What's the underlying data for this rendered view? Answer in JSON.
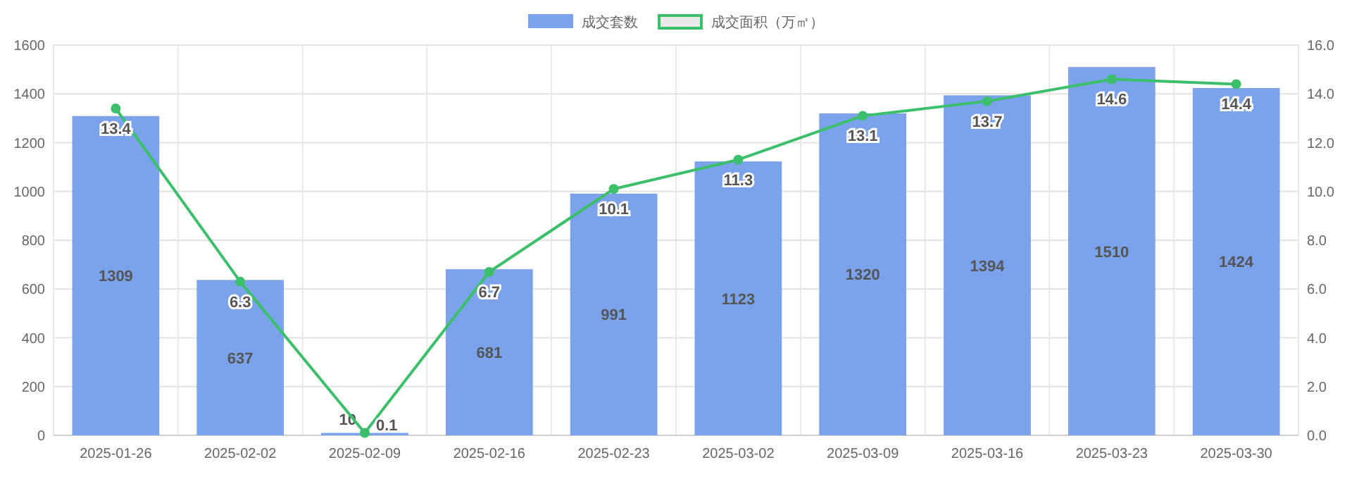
{
  "chart_data": {
    "type": "bar",
    "categories": [
      "2025-01-26",
      "2025-02-02",
      "2025-02-09",
      "2025-02-16",
      "2025-02-23",
      "2025-03-02",
      "2025-03-09",
      "2025-03-16",
      "2025-03-23",
      "2025-03-30"
    ],
    "series": [
      {
        "name": "成交套数",
        "color": "#7ba3ec",
        "values": [
          1309,
          637,
          10,
          681,
          991,
          1123,
          1320,
          1394,
          1510,
          1424
        ]
      },
      {
        "name": "成交面积（万㎡）",
        "type": "line",
        "axis": "y2",
        "color": "#3cbf6b",
        "values": [
          13.4,
          6.3,
          0.1,
          6.7,
          10.1,
          11.3,
          13.1,
          13.7,
          14.6,
          14.4
        ]
      }
    ],
    "ylim": [
      0,
      1600
    ],
    "yticks": [
      0,
      200,
      400,
      600,
      800,
      1000,
      1200,
      1400,
      1600
    ],
    "y2lim": [
      0,
      16
    ],
    "y2ticks": [
      {
        "value": 0,
        "label": "0.0"
      },
      {
        "value": 2,
        "label": "2.0"
      },
      {
        "value": 4,
        "label": "4.0"
      },
      {
        "value": 6,
        "label": "6.0"
      },
      {
        "value": 8,
        "label": "8.0"
      },
      {
        "value": 10,
        "label": "10.0"
      },
      {
        "value": 12,
        "label": "12.0"
      },
      {
        "value": 14,
        "label": "14.0"
      },
      {
        "value": 16,
        "label": "16.0"
      }
    ],
    "grid": true,
    "legend": "top",
    "data_labels": true,
    "marker": "circle"
  }
}
